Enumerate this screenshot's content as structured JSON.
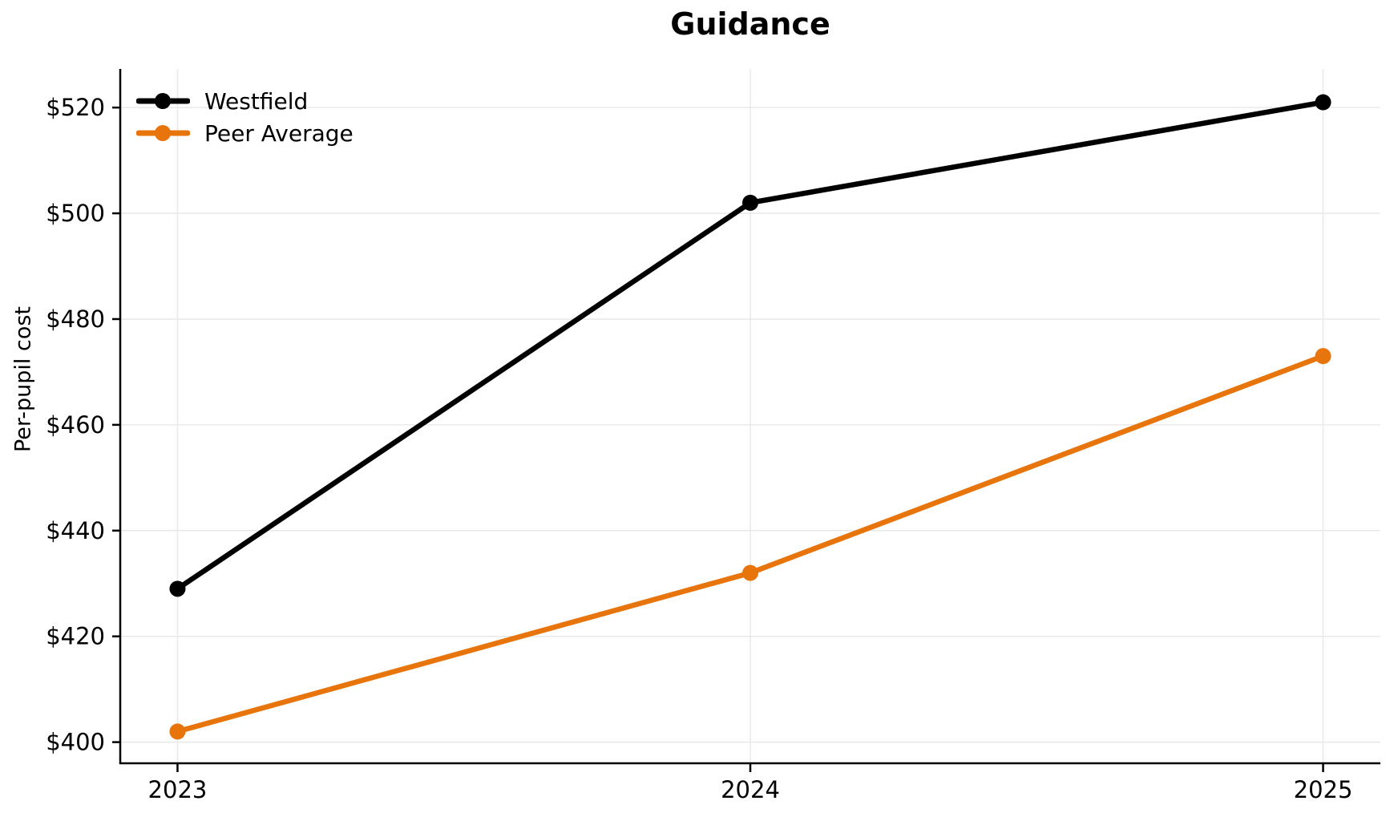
{
  "chart_data": {
    "type": "line",
    "title": "Guidance",
    "xlabel": "",
    "ylabel": "Per-pupil cost",
    "x": [
      2023,
      2024,
      2025
    ],
    "x_tick_labels": [
      "2023",
      "2024",
      "2025"
    ],
    "series": [
      {
        "name": "Westfield",
        "color": "#000000",
        "values": [
          429,
          502,
          521
        ]
      },
      {
        "name": "Peer Average",
        "color": "#E8750C",
        "values": [
          402,
          432,
          473
        ]
      }
    ],
    "y_ticks": [
      400,
      420,
      440,
      460,
      480,
      500,
      520
    ],
    "y_tick_labels": [
      "$400",
      "$420",
      "$440",
      "$460",
      "$480",
      "$500",
      "$520"
    ],
    "xlim": [
      2022.9,
      2025.1
    ],
    "ylim": [
      396,
      527.3
    ],
    "grid": true,
    "grid_color": "#E9E9E9",
    "axis_color": "#000000",
    "background": "#FFFFFF",
    "legend_position": "upper left",
    "line_width": 6.5,
    "marker_radius": 10
  }
}
